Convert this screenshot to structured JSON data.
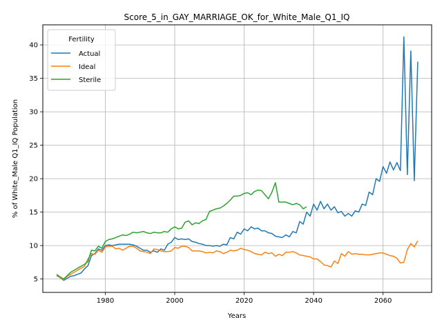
{
  "chart_data": {
    "type": "line",
    "title": "Score_5_in_GAY_MARRIAGE_OK_for_White_Male_Q1_IQ",
    "xlabel": "Years",
    "ylabel": "% of White_Male Q1_IQ Population",
    "xlim": [
      1962,
      2074
    ],
    "ylim": [
      3,
      43
    ],
    "xticks": [
      1980,
      2000,
      2020,
      2040,
      2060
    ],
    "yticks": [
      5,
      10,
      15,
      20,
      25,
      30,
      35,
      40
    ],
    "grid": true,
    "legend": {
      "title": "Fertility",
      "placement": "top-left"
    },
    "x": [
      1966,
      1967,
      1968,
      1969,
      1970,
      1971,
      1972,
      1973,
      1974,
      1975,
      1976,
      1977,
      1978,
      1979,
      1980,
      1981,
      1982,
      1983,
      1984,
      1985,
      1986,
      1987,
      1988,
      1989,
      1990,
      1991,
      1992,
      1993,
      1994,
      1995,
      1996,
      1997,
      1998,
      1999,
      2000,
      2001,
      2002,
      2003,
      2004,
      2005,
      2006,
      2007,
      2008,
      2009,
      2010,
      2011,
      2012,
      2013,
      2014,
      2015,
      2016,
      2017,
      2018,
      2019,
      2020,
      2021,
      2022,
      2023,
      2024,
      2025,
      2026,
      2027,
      2028,
      2029,
      2030,
      2031,
      2032,
      2033,
      2034,
      2035,
      2036,
      2037,
      2038,
      2039,
      2040,
      2041,
      2042,
      2043,
      2044,
      2045,
      2046,
      2047,
      2048,
      2049,
      2050,
      2051,
      2052,
      2053,
      2054,
      2055,
      2056,
      2057,
      2058,
      2059,
      2060,
      2061,
      2062,
      2063,
      2064,
      2065,
      2066,
      2067,
      2068,
      2069,
      2070
    ],
    "series": [
      {
        "name": "Actual",
        "color": "#1f77b4",
        "values": [
          5.5,
          5.2,
          4.8,
          5.1,
          5.4,
          5.5,
          5.7,
          5.9,
          6.5,
          7.0,
          8.5,
          8.8,
          9.5,
          9.3,
          10.0,
          10.1,
          10.0,
          10.1,
          10.2,
          10.2,
          10.2,
          10.2,
          10.1,
          9.9,
          9.6,
          9.3,
          9.3,
          9.0,
          9.2,
          9.0,
          9.5,
          9.3,
          10.2,
          10.5,
          11.2,
          10.9,
          11.0,
          10.9,
          11.0,
          10.6,
          10.5,
          10.3,
          10.2,
          10.0,
          10.0,
          9.9,
          10.0,
          9.9,
          10.2,
          10.1,
          11.2,
          11.0,
          12.0,
          11.7,
          12.5,
          12.2,
          12.8,
          12.5,
          12.6,
          12.2,
          12.2,
          11.9,
          11.8,
          11.4,
          11.3,
          11.2,
          11.6,
          11.3,
          12.1,
          11.9,
          13.6,
          13.2,
          15.0,
          14.4,
          16.2,
          15.3,
          16.6,
          15.5,
          16.2,
          15.3,
          15.8,
          14.9,
          15.1,
          14.4,
          14.8,
          14.4,
          15.2,
          15.0,
          16.2,
          16.0,
          18.0,
          17.6,
          20.0,
          19.6,
          21.8,
          20.8,
          22.5,
          21.3,
          22.4,
          21.2,
          41.2,
          20.6,
          39.1,
          19.7,
          37.5
        ]
      },
      {
        "name": "Ideal",
        "color": "#ff7f0e",
        "values": [
          5.6,
          5.2,
          4.9,
          5.4,
          5.7,
          6.0,
          6.3,
          6.6,
          6.9,
          8.0,
          8.8,
          8.7,
          9.3,
          9.0,
          9.8,
          9.9,
          9.9,
          9.5,
          9.6,
          9.3,
          9.6,
          9.9,
          9.9,
          9.6,
          9.2,
          9.1,
          9.0,
          8.8,
          9.5,
          9.4,
          9.2,
          9.1,
          9.1,
          9.2,
          9.7,
          9.6,
          9.9,
          9.9,
          9.7,
          9.2,
          9.2,
          9.2,
          9.1,
          8.9,
          9.0,
          8.9,
          9.2,
          9.1,
          8.8,
          9.0,
          9.3,
          9.2,
          9.3,
          9.6,
          9.4,
          9.3,
          9.1,
          8.8,
          8.7,
          8.6,
          9.0,
          8.8,
          8.9,
          8.4,
          8.7,
          8.5,
          9.0,
          9.0,
          9.1,
          8.9,
          8.6,
          8.5,
          8.4,
          8.3,
          8.0,
          8.0,
          7.6,
          7.1,
          7.0,
          6.8,
          7.7,
          7.3,
          8.8,
          8.4,
          9.1,
          8.7,
          8.8,
          8.7,
          8.7,
          8.6,
          8.6,
          8.7,
          8.8,
          8.9,
          8.9,
          8.7,
          8.5,
          8.4,
          8.1,
          7.4,
          7.5,
          9.4,
          10.3,
          9.8,
          10.7
        ]
      },
      {
        "name": "Sterile",
        "color": "#2ca02c",
        "values": [
          5.7,
          5.3,
          5.0,
          5.5,
          6.0,
          6.3,
          6.6,
          6.9,
          7.2,
          7.6,
          9.3,
          9.2,
          9.9,
          9.6,
          10.6,
          10.9,
          11.0,
          11.2,
          11.4,
          11.6,
          11.5,
          11.7,
          12.0,
          11.9,
          12.0,
          12.1,
          11.9,
          11.8,
          12.0,
          11.9,
          11.9,
          12.1,
          12.0,
          12.5,
          12.8,
          12.5,
          12.6,
          13.5,
          13.7,
          13.1,
          13.4,
          13.3,
          13.7,
          13.9,
          15.1,
          15.3,
          15.5,
          15.6,
          15.9,
          16.3,
          16.8,
          17.4,
          17.4,
          17.5,
          17.8,
          17.9,
          17.6,
          18.1,
          18.3,
          18.2,
          17.6,
          17.0,
          18.0,
          19.4,
          16.5,
          16.5,
          16.5,
          16.3,
          16.1,
          16.3,
          16.1,
          15.5,
          15.8,
          null,
          null,
          null,
          null,
          null,
          null,
          null,
          null,
          null,
          null,
          null,
          null,
          null,
          null,
          null,
          null,
          null,
          null,
          null,
          null,
          null,
          null,
          null,
          null,
          null,
          null,
          null,
          null,
          null,
          null,
          null,
          null
        ]
      }
    ]
  }
}
